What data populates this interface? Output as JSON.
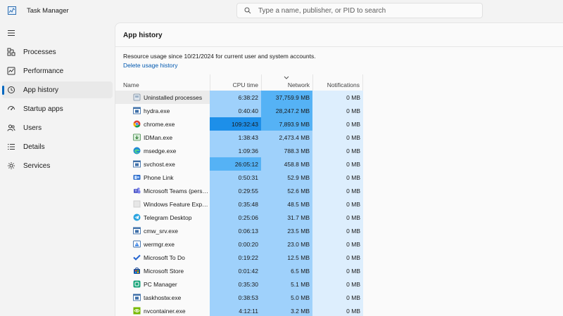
{
  "app": {
    "title": "Task Manager"
  },
  "search": {
    "placeholder": "Type a name, publisher, or PID to search"
  },
  "sidebar": {
    "items": [
      {
        "label": "Processes",
        "icon": "processes-icon"
      },
      {
        "label": "Performance",
        "icon": "performance-icon"
      },
      {
        "label": "App history",
        "icon": "history-icon",
        "active": true
      },
      {
        "label": "Startup apps",
        "icon": "startup-icon"
      },
      {
        "label": "Users",
        "icon": "users-icon"
      },
      {
        "label": "Details",
        "icon": "details-icon"
      },
      {
        "label": "Services",
        "icon": "services-icon"
      }
    ]
  },
  "main": {
    "title": "App history",
    "info": "Resource usage since 10/21/2024 for current user and system accounts.",
    "delete_link": "Delete usage history",
    "columns": {
      "name": "Name",
      "cpu": "CPU time",
      "network": "Network",
      "notifications": "Notifications"
    },
    "sorted_column": "network",
    "rows": [
      {
        "name": "Uninstalled processes",
        "cpu": "6:38:22",
        "network": "37,759.9 MB",
        "notifications": "0 MB",
        "icon": "generic-app-icon"
      },
      {
        "name": "hydra.exe",
        "cpu": "0:40:40",
        "network": "28,247.2 MB",
        "notifications": "0 MB",
        "icon": "window-app-icon"
      },
      {
        "name": "chrome.exe",
        "cpu": "109:32:43",
        "network": "7,893.9 MB",
        "notifications": "0 MB",
        "icon": "chrome-icon"
      },
      {
        "name": "IDMan.exe",
        "cpu": "1:38:43",
        "network": "2,473.4 MB",
        "notifications": "0 MB",
        "icon": "idm-icon"
      },
      {
        "name": "msedge.exe",
        "cpu": "1:09:36",
        "network": "788.3 MB",
        "notifications": "0 MB",
        "icon": "edge-icon"
      },
      {
        "name": "svchost.exe",
        "cpu": "26:05:12",
        "network": "458.8 MB",
        "notifications": "0 MB",
        "icon": "window-app-icon"
      },
      {
        "name": "Phone Link",
        "cpu": "0:50:31",
        "network": "52.9 MB",
        "notifications": "0 MB",
        "icon": "phone-link-icon"
      },
      {
        "name": "Microsoft Teams (perso...",
        "cpu": "0:29:55",
        "network": "52.6 MB",
        "notifications": "0 MB",
        "icon": "teams-icon"
      },
      {
        "name": "Windows Feature Exper...",
        "cpu": "0:35:48",
        "network": "48.5 MB",
        "notifications": "0 MB",
        "icon": "blank-app-icon"
      },
      {
        "name": "Telegram Desktop",
        "cpu": "0:25:06",
        "network": "31.7 MB",
        "notifications": "0 MB",
        "icon": "telegram-icon"
      },
      {
        "name": "cmw_srv.exe",
        "cpu": "0:06:13",
        "network": "23.5 MB",
        "notifications": "0 MB",
        "icon": "window-app-icon"
      },
      {
        "name": "wermgr.exe",
        "cpu": "0:00:20",
        "network": "23.0 MB",
        "notifications": "0 MB",
        "icon": "wermgr-icon"
      },
      {
        "name": "Microsoft To Do",
        "cpu": "0:19:22",
        "network": "12.5 MB",
        "notifications": "0 MB",
        "icon": "todo-icon"
      },
      {
        "name": "Microsoft Store",
        "cpu": "0:01:42",
        "network": "6.5 MB",
        "notifications": "0 MB",
        "icon": "store-icon"
      },
      {
        "name": "PC Manager",
        "cpu": "0:35:30",
        "network": "5.1 MB",
        "notifications": "0 MB",
        "icon": "pc-manager-icon"
      },
      {
        "name": "taskhostw.exe",
        "cpu": "0:38:53",
        "network": "5.0 MB",
        "notifications": "0 MB",
        "icon": "window-app-icon"
      },
      {
        "name": "nvcontainer.exe",
        "cpu": "4:12:11",
        "network": "3.2 MB",
        "notifications": "0 MB",
        "icon": "nvidia-icon"
      }
    ]
  },
  "colors": {
    "accent": "#0067c0",
    "heat_light": "#ddeefd",
    "heat_medium": "#9fd1fb",
    "heat_strong": "#55b2f5",
    "heat_hot": "#1d8fe9",
    "link": "#0058b0"
  }
}
